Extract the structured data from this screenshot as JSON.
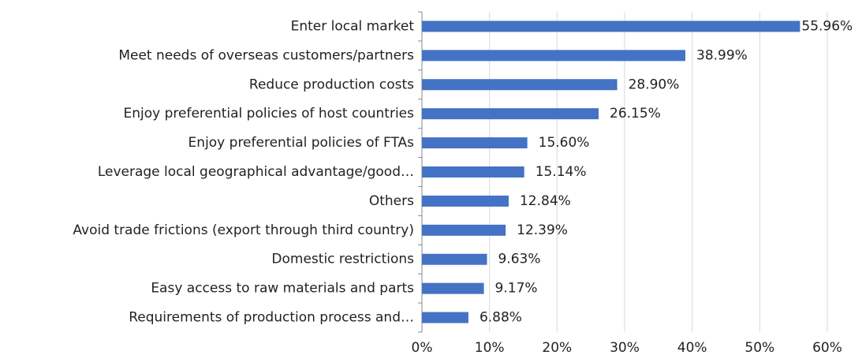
{
  "chart_data": {
    "type": "bar",
    "orientation": "horizontal",
    "categories": [
      "Enter local market",
      "Meet needs of overseas customers/partners",
      "Reduce production costs",
      "Enjoy preferential policies of host countries",
      "Enjoy preferential policies of FTAs",
      "Leverage local geographical advantage/good…",
      "Others",
      "Avoid trade frictions (export through third country)",
      "Domestic restrictions",
      "Easy access to raw materials and parts",
      "Requirements of production process and…"
    ],
    "values": [
      55.96,
      38.99,
      28.9,
      26.15,
      15.6,
      15.14,
      12.84,
      12.39,
      9.63,
      9.17,
      6.88
    ],
    "value_labels": [
      "55.96%",
      "38.99%",
      "28.90%",
      "26.15%",
      "15.60%",
      "15.14%",
      "12.84%",
      "12.39%",
      "9.63%",
      "9.17%",
      "6.88%"
    ],
    "color": "#4472c4",
    "xlim": [
      0,
      60
    ],
    "xticks": [
      {
        "value": 0,
        "label": "0%"
      },
      {
        "value": 10,
        "label": "10%"
      },
      {
        "value": 20,
        "label": "20%"
      },
      {
        "value": 30,
        "label": "30%"
      },
      {
        "value": 40,
        "label": "40%"
      },
      {
        "value": 50,
        "label": "50%"
      },
      {
        "value": 60,
        "label": "60%"
      }
    ],
    "grid": true
  }
}
